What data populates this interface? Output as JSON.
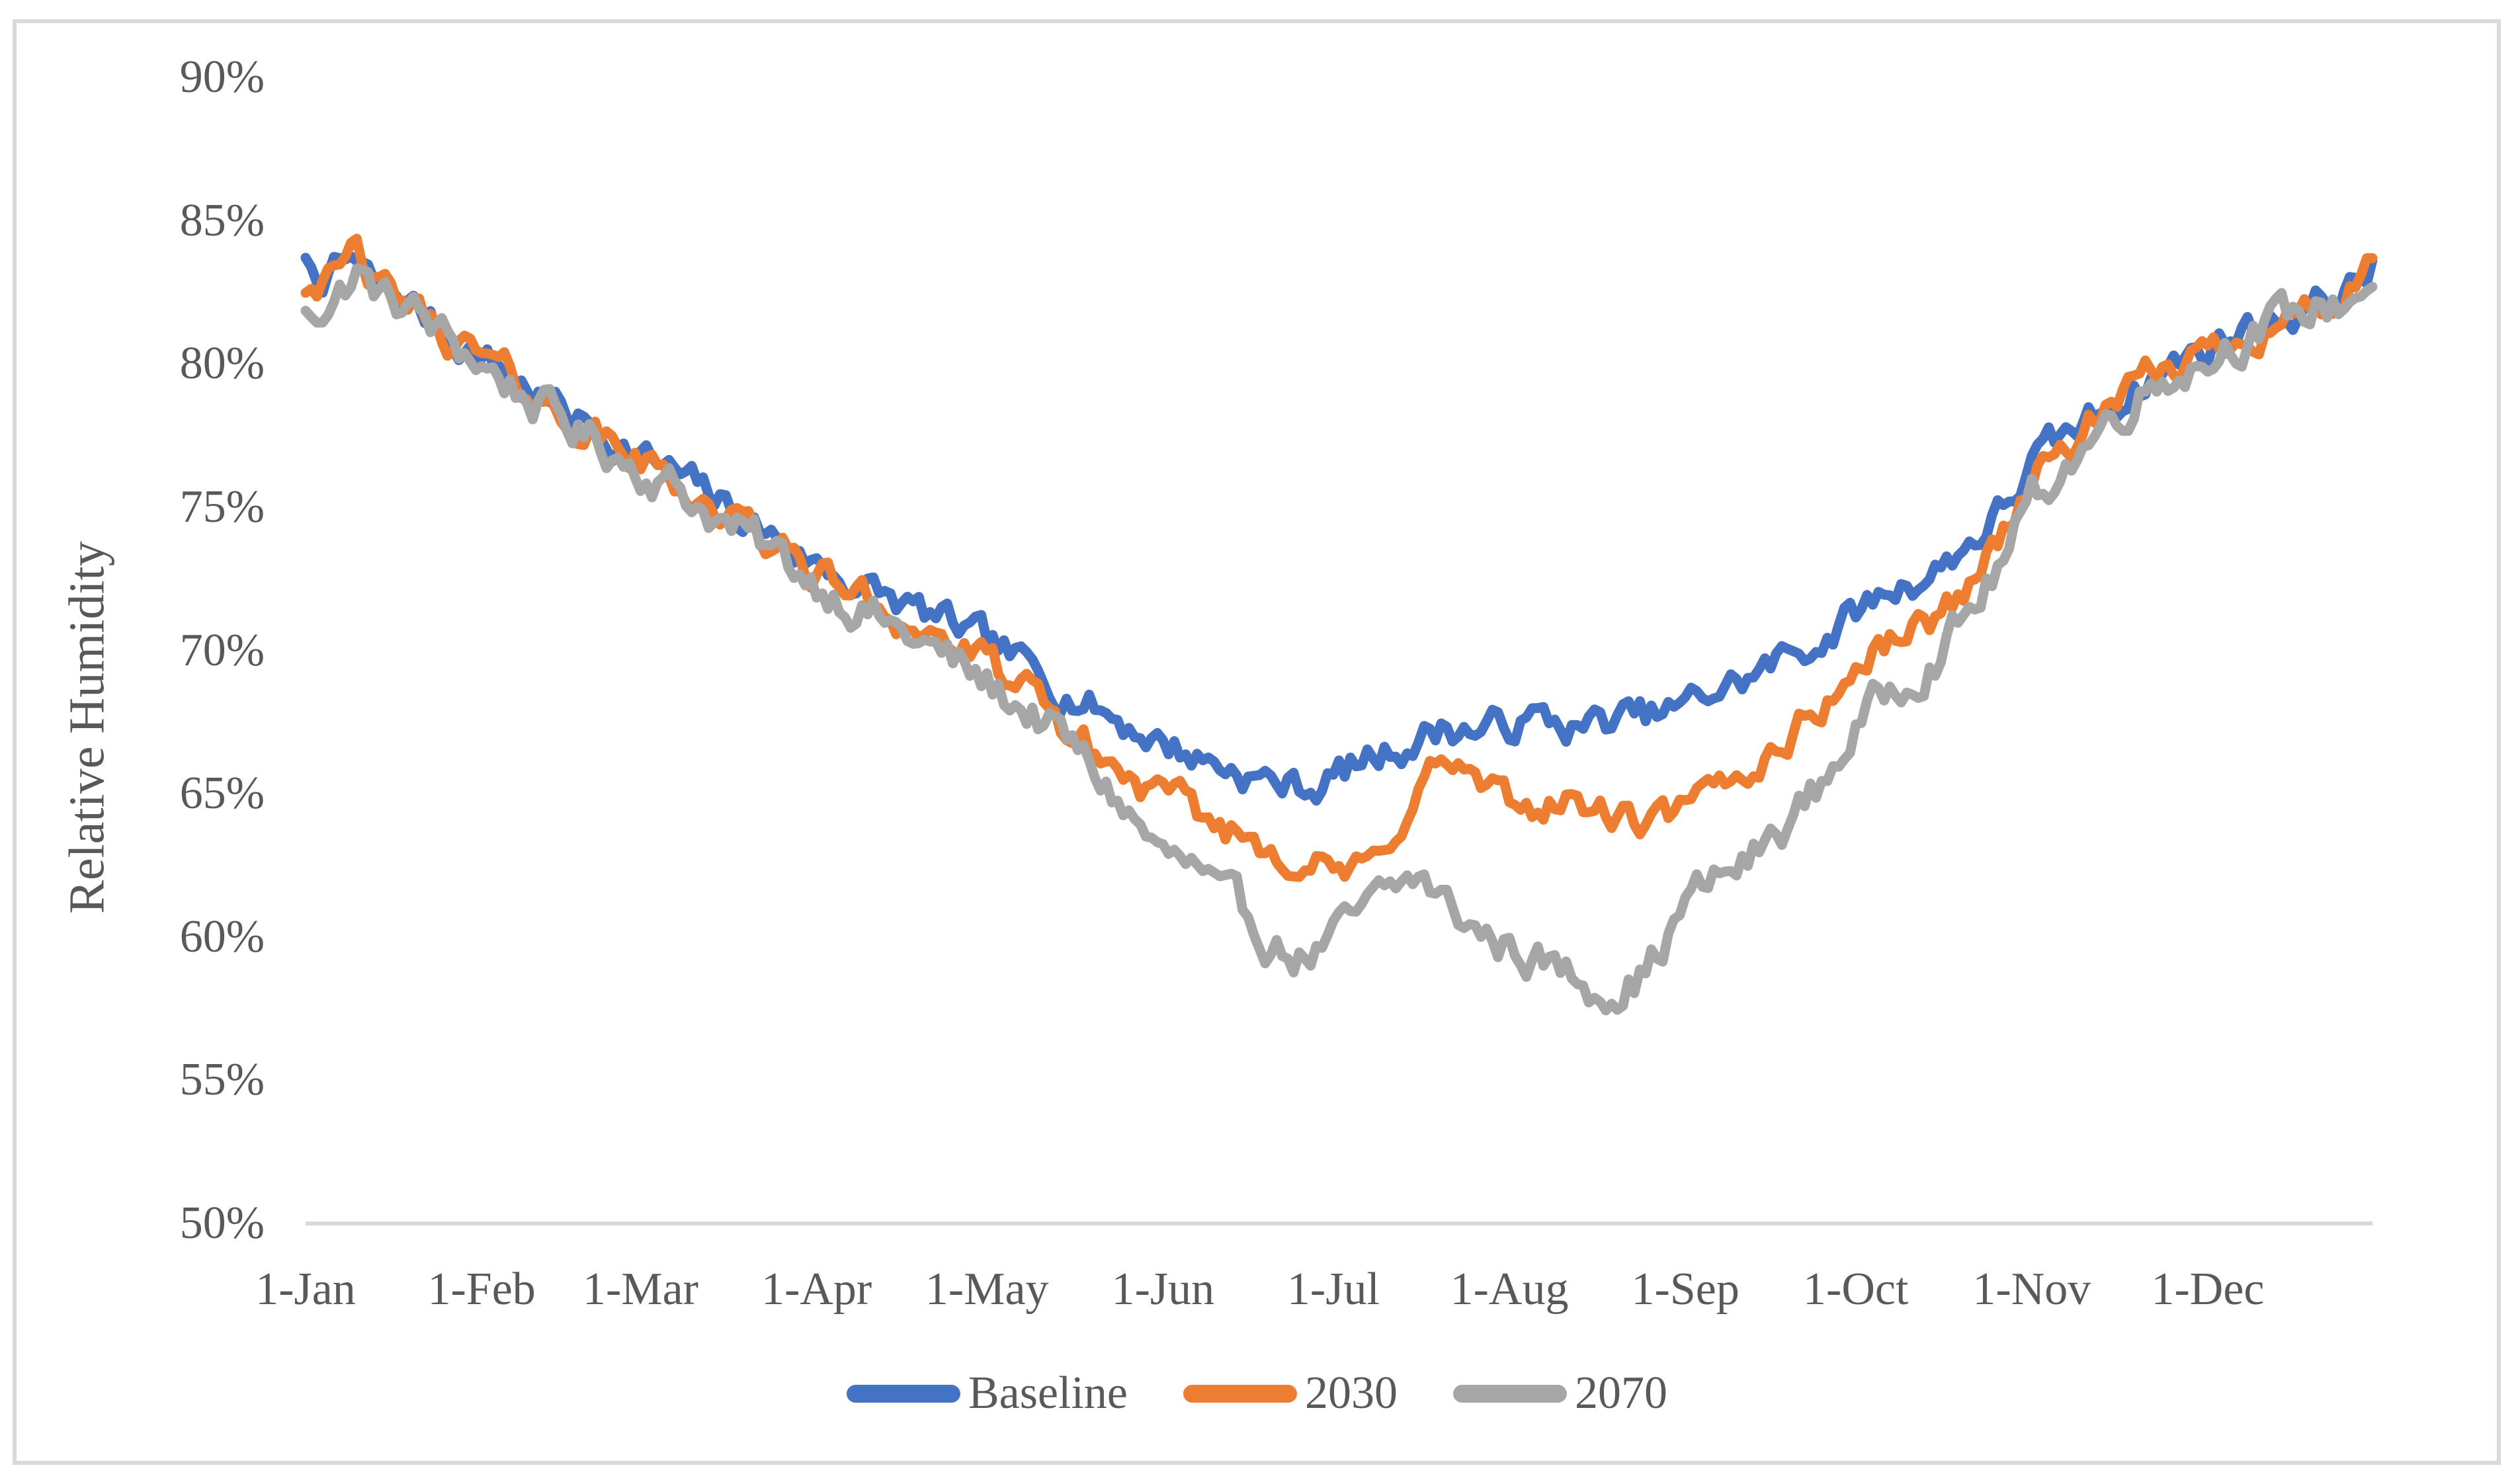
{
  "page": {
    "background": "#FFFFFF",
    "frame_color": "#D9D9D9",
    "axis_color": "#D9D9D9",
    "text_color": "#595959"
  },
  "chart_data": {
    "type": "line",
    "title": "",
    "ylabel": "Relative Humidity",
    "grid": "off",
    "y_axis": {
      "min": 50,
      "max": 90,
      "step": 5,
      "suffix": "%",
      "labels": [
        "90%",
        "85%",
        "80%",
        "75%",
        "70%",
        "65%",
        "60%",
        "55%",
        "50%"
      ]
    },
    "x_axis": {
      "last_day": 364,
      "ticks": [
        {
          "label": "1-Jan",
          "day": 0
        },
        {
          "label": "1-Feb",
          "day": 31
        },
        {
          "label": "1-Mar",
          "day": 59
        },
        {
          "label": "1-Apr",
          "day": 90
        },
        {
          "label": "1-May",
          "day": 120
        },
        {
          "label": "1-Jun",
          "day": 151
        },
        {
          "label": "1-Jul",
          "day": 181
        },
        {
          "label": "1-Aug",
          "day": 212
        },
        {
          "label": "1-Sep",
          "day": 243
        },
        {
          "label": "1-Oct",
          "day": 273
        },
        {
          "label": "1-Nov",
          "day": 304
        },
        {
          "label": "1-Dec",
          "day": 335
        }
      ]
    },
    "legend": {
      "position": "bottom",
      "entries": [
        "Baseline",
        "2030",
        "2070"
      ]
    },
    "series": [
      {
        "name": "Baseline",
        "color": "#4472C4",
        "noise": {
          "amplitude": 0.5,
          "ar": 0.62,
          "seed": 7
        },
        "anchors": [
          [
            0,
            83.4
          ],
          [
            4,
            83.1
          ],
          [
            8,
            83.6
          ],
          [
            13,
            82.5
          ],
          [
            18,
            82.2
          ],
          [
            24,
            81.2
          ],
          [
            31,
            80.3
          ],
          [
            38,
            79.3
          ],
          [
            45,
            78.4
          ],
          [
            52,
            77.6
          ],
          [
            59,
            76.8
          ],
          [
            66,
            76.0
          ],
          [
            74,
            75.0
          ],
          [
            82,
            74.0
          ],
          [
            90,
            73.0
          ],
          [
            98,
            72.2
          ],
          [
            105,
            71.6
          ],
          [
            113,
            70.9
          ],
          [
            120,
            70.2
          ],
          [
            128,
            69.3
          ],
          [
            135,
            68.5
          ],
          [
            143,
            67.6
          ],
          [
            151,
            66.8
          ],
          [
            157,
            66.3
          ],
          [
            163,
            65.9
          ],
          [
            170,
            65.4
          ],
          [
            177,
            65.2
          ],
          [
            184,
            65.9
          ],
          [
            192,
            66.6
          ],
          [
            200,
            67.3
          ],
          [
            208,
            67.2
          ],
          [
            216,
            67.6
          ],
          [
            224,
            67.3
          ],
          [
            232,
            67.6
          ],
          [
            238,
            67.7
          ],
          [
            243,
            68.0
          ],
          [
            248,
            68.6
          ],
          [
            254,
            69.0
          ],
          [
            261,
            69.8
          ],
          [
            267,
            70.4
          ],
          [
            273,
            71.3
          ],
          [
            280,
            72.2
          ],
          [
            287,
            72.8
          ],
          [
            292,
            73.6
          ],
          [
            296,
            74.3
          ],
          [
            300,
            75.2
          ],
          [
            304,
            76.5
          ],
          [
            308,
            77.1
          ],
          [
            312,
            77.7
          ],
          [
            316,
            78.3
          ],
          [
            320,
            78.9
          ],
          [
            324,
            79.4
          ],
          [
            328,
            79.9
          ],
          [
            332,
            80.3
          ],
          [
            335,
            80.6
          ],
          [
            339,
            81.0
          ],
          [
            343,
            81.3
          ],
          [
            347,
            81.6
          ],
          [
            351,
            81.9
          ],
          [
            355,
            82.2
          ],
          [
            358,
            82.4
          ],
          [
            361,
            82.8
          ],
          [
            364,
            83.4
          ]
        ]
      },
      {
        "name": "2030",
        "color": "#ED7D31",
        "noise": {
          "amplitude": 0.5,
          "ar": 0.62,
          "seed": 42
        },
        "anchors": [
          [
            0,
            83.2
          ],
          [
            5,
            82.8
          ],
          [
            9,
            83.9
          ],
          [
            13,
            82.5
          ],
          [
            18,
            82.1
          ],
          [
            24,
            81.1
          ],
          [
            31,
            80.2
          ],
          [
            38,
            79.2
          ],
          [
            45,
            78.2
          ],
          [
            52,
            77.4
          ],
          [
            59,
            76.6
          ],
          [
            66,
            75.8
          ],
          [
            74,
            74.7
          ],
          [
            82,
            73.7
          ],
          [
            90,
            72.7
          ],
          [
            98,
            71.9
          ],
          [
            105,
            71.1
          ],
          [
            113,
            70.3
          ],
          [
            120,
            69.5
          ],
          [
            128,
            68.3
          ],
          [
            135,
            67.0
          ],
          [
            143,
            65.8
          ],
          [
            151,
            64.8
          ],
          [
            157,
            64.2
          ],
          [
            163,
            63.7
          ],
          [
            170,
            63.2
          ],
          [
            177,
            62.6
          ],
          [
            184,
            62.1
          ],
          [
            189,
            62.6
          ],
          [
            194,
            64.6
          ],
          [
            199,
            66.0
          ],
          [
            203,
            65.9
          ],
          [
            208,
            65.0
          ],
          [
            214,
            64.3
          ],
          [
            219,
            64.8
          ],
          [
            224,
            64.6
          ],
          [
            230,
            64.2
          ],
          [
            236,
            63.8
          ],
          [
            243,
            64.3
          ],
          [
            248,
            65.0
          ],
          [
            254,
            65.8
          ],
          [
            261,
            67.0
          ],
          [
            267,
            68.1
          ],
          [
            273,
            69.3
          ],
          [
            280,
            70.5
          ],
          [
            287,
            71.1
          ],
          [
            292,
            72.1
          ],
          [
            296,
            73.3
          ],
          [
            300,
            74.5
          ],
          [
            304,
            76.0
          ],
          [
            308,
            76.7
          ],
          [
            312,
            77.4
          ],
          [
            316,
            78.1
          ],
          [
            320,
            78.7
          ],
          [
            324,
            79.3
          ],
          [
            328,
            79.8
          ],
          [
            332,
            80.2
          ],
          [
            335,
            80.4
          ],
          [
            339,
            80.9
          ],
          [
            343,
            81.2
          ],
          [
            347,
            81.5
          ],
          [
            351,
            81.8
          ],
          [
            355,
            82.0
          ],
          [
            358,
            82.2
          ],
          [
            361,
            82.6
          ],
          [
            364,
            83.2
          ]
        ]
      },
      {
        "name": "2070",
        "color": "#A6A6A6",
        "noise": {
          "amplitude": 0.58,
          "ar": 0.62,
          "seed": 1234
        },
        "anchors": [
          [
            0,
            81.9
          ],
          [
            5,
            82.2
          ],
          [
            9,
            83.2
          ],
          [
            14,
            82.2
          ],
          [
            18,
            82.0
          ],
          [
            24,
            81.0
          ],
          [
            31,
            80.0
          ],
          [
            38,
            79.0
          ],
          [
            45,
            78.0
          ],
          [
            52,
            77.2
          ],
          [
            59,
            76.4
          ],
          [
            66,
            75.6
          ],
          [
            74,
            74.4
          ],
          [
            82,
            73.4
          ],
          [
            90,
            72.4
          ],
          [
            98,
            71.5
          ],
          [
            105,
            70.6
          ],
          [
            113,
            69.7
          ],
          [
            120,
            68.8
          ],
          [
            128,
            67.8
          ],
          [
            135,
            66.6
          ],
          [
            143,
            64.8
          ],
          [
            151,
            62.8
          ],
          [
            156,
            62.4
          ],
          [
            161,
            61.2
          ],
          [
            166,
            60.6
          ],
          [
            171,
            59.7
          ],
          [
            176,
            59.3
          ],
          [
            181,
            59.9
          ],
          [
            186,
            60.7
          ],
          [
            190,
            61.4
          ],
          [
            196,
            62.1
          ],
          [
            202,
            60.9
          ],
          [
            208,
            60.0
          ],
          [
            214,
            59.5
          ],
          [
            220,
            58.9
          ],
          [
            226,
            58.4
          ],
          [
            231,
            58.3
          ],
          [
            236,
            58.8
          ],
          [
            240,
            60.0
          ],
          [
            243,
            61.2
          ],
          [
            248,
            61.9
          ],
          [
            254,
            62.6
          ],
          [
            261,
            64.0
          ],
          [
            267,
            65.3
          ],
          [
            273,
            67.3
          ],
          [
            280,
            68.8
          ],
          [
            287,
            69.9
          ],
          [
            292,
            71.0
          ],
          [
            296,
            72.2
          ],
          [
            300,
            73.5
          ],
          [
            304,
            75.2
          ],
          [
            308,
            76.1
          ],
          [
            312,
            76.9
          ],
          [
            316,
            77.7
          ],
          [
            320,
            78.5
          ],
          [
            324,
            79.2
          ],
          [
            328,
            79.7
          ],
          [
            332,
            80.0
          ],
          [
            335,
            80.2
          ],
          [
            339,
            80.8
          ],
          [
            343,
            81.1
          ],
          [
            347,
            81.4
          ],
          [
            351,
            81.7
          ],
          [
            355,
            82.0
          ],
          [
            358,
            82.1
          ],
          [
            361,
            82.5
          ],
          [
            364,
            82.9
          ]
        ]
      }
    ]
  }
}
